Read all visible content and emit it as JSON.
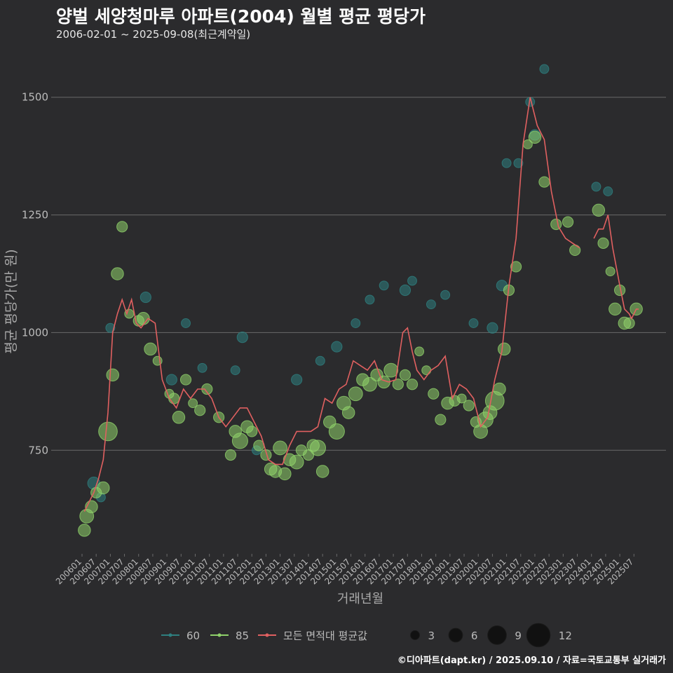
{
  "title": "양벌 세양청마루 아파트(2004) 월별 평균 평당가",
  "subtitle": "2006-02-01 ~ 2025-09-08(최근계약일)",
  "caption": "©디아파트(dapt.kr) / 2025.09.10 / 자료=국토교통부 실거래가",
  "colors": {
    "series60": "#2e7f7f",
    "series85": "#8fd16a",
    "avg": "#e06060",
    "grid": "#6a6a6a",
    "text": "#bbbbbb"
  },
  "chart_data": {
    "type": "line+scatter",
    "xlabel": "거래년월",
    "ylabel": "평균 평당가(만 원)",
    "ylim": [
      530,
      1580
    ],
    "yticks": [
      750,
      1000,
      1250,
      1500
    ],
    "x_start": "2006-01",
    "x_end": "2025-09",
    "xticks": [
      "200601",
      "200607",
      "200701",
      "200707",
      "200801",
      "200807",
      "200901",
      "200907",
      "201001",
      "201007",
      "201101",
      "201107",
      "201201",
      "201207",
      "201301",
      "201307",
      "201401",
      "201407",
      "201501",
      "201507",
      "201601",
      "201607",
      "201701",
      "201707",
      "201801",
      "201807",
      "201901",
      "201907",
      "202001",
      "202007",
      "202101",
      "202107",
      "202201",
      "202207",
      "202301",
      "202307",
      "202401",
      "202407",
      "202501",
      "202507"
    ],
    "legend": {
      "series": [
        "60",
        "85",
        "모든 면적대 평균값"
      ],
      "sizes": [
        3,
        6,
        9,
        12
      ]
    },
    "avg_line": [
      [
        "2006-02",
        620
      ],
      [
        "2006-04",
        640
      ],
      [
        "2006-06",
        660
      ],
      [
        "2006-08",
        690
      ],
      [
        "2006-10",
        730
      ],
      [
        "2006-12",
        830
      ],
      [
        "2007-02",
        1000
      ],
      [
        "2007-04",
        1040
      ],
      [
        "2007-06",
        1070
      ],
      [
        "2007-08",
        1040
      ],
      [
        "2007-10",
        1070
      ],
      [
        "2007-12",
        1020
      ],
      [
        "2008-02",
        1010
      ],
      [
        "2008-05",
        1030
      ],
      [
        "2008-08",
        1020
      ],
      [
        "2008-11",
        900
      ],
      [
        "2009-02",
        860
      ],
      [
        "2009-05",
        840
      ],
      [
        "2009-08",
        880
      ],
      [
        "2009-11",
        860
      ],
      [
        "2010-02",
        880
      ],
      [
        "2010-05",
        880
      ],
      [
        "2010-08",
        860
      ],
      [
        "2010-11",
        820
      ],
      [
        "2011-02",
        800
      ],
      [
        "2011-05",
        820
      ],
      [
        "2011-08",
        840
      ],
      [
        "2011-11",
        840
      ],
      [
        "2012-02",
        810
      ],
      [
        "2012-05",
        780
      ],
      [
        "2012-08",
        730
      ],
      [
        "2012-11",
        720
      ],
      [
        "2013-02",
        720
      ],
      [
        "2013-05",
        760
      ],
      [
        "2013-08",
        790
      ],
      [
        "2013-11",
        790
      ],
      [
        "2014-02",
        790
      ],
      [
        "2014-05",
        800
      ],
      [
        "2014-08",
        860
      ],
      [
        "2014-11",
        850
      ],
      [
        "2015-02",
        880
      ],
      [
        "2015-05",
        890
      ],
      [
        "2015-08",
        940
      ],
      [
        "2015-11",
        930
      ],
      [
        "2016-02",
        920
      ],
      [
        "2016-05",
        940
      ],
      [
        "2016-08",
        900
      ],
      [
        "2016-11",
        895
      ],
      [
        "2017-02",
        900
      ],
      [
        "2017-05",
        1000
      ],
      [
        "2017-07",
        1010
      ],
      [
        "2017-09",
        960
      ],
      [
        "2017-11",
        920
      ],
      [
        "2018-02",
        900
      ],
      [
        "2018-05",
        920
      ],
      [
        "2018-08",
        930
      ],
      [
        "2018-11",
        950
      ],
      [
        "2019-02",
        860
      ],
      [
        "2019-05",
        890
      ],
      [
        "2019-08",
        880
      ],
      [
        "2019-11",
        860
      ],
      [
        "2020-02",
        800
      ],
      [
        "2020-05",
        820
      ],
      [
        "2020-08",
        900
      ],
      [
        "2020-11",
        960
      ],
      [
        "2021-02",
        1100
      ],
      [
        "2021-05",
        1200
      ],
      [
        "2021-08",
        1400
      ],
      [
        "2021-11",
        1500
      ],
      [
        "2022-02",
        1440
      ],
      [
        "2022-05",
        1410
      ],
      [
        "2022-08",
        1300
      ],
      [
        "2022-11",
        1225
      ],
      [
        "2023-02",
        1200
      ],
      [
        "2023-05",
        1190
      ],
      [
        "2023-08",
        1180
      ],
      null,
      [
        "2024-02",
        1200
      ],
      [
        "2024-04",
        1220
      ],
      [
        "2024-06",
        1220
      ],
      [
        "2024-08",
        1250
      ],
      [
        "2024-10",
        1180
      ],
      [
        "2025-01",
        1100
      ],
      [
        "2025-03",
        1050
      ],
      [
        "2025-05",
        1040
      ],
      [
        "2025-06",
        1030
      ],
      [
        "2025-08",
        1050
      ],
      [
        "2025-09",
        1050
      ]
    ],
    "series": [
      {
        "name": "60",
        "points": [
          [
            "2006-06",
            680,
            5
          ],
          [
            "2006-09",
            650,
            3
          ],
          [
            "2007-01",
            1010,
            3
          ],
          [
            "2008-04",
            1075,
            4
          ],
          [
            "2009-03",
            900,
            4
          ],
          [
            "2009-09",
            1020,
            3
          ],
          [
            "2010-04",
            925,
            3
          ],
          [
            "2011-06",
            920,
            3
          ],
          [
            "2011-09",
            990,
            4
          ],
          [
            "2012-03",
            750,
            3
          ],
          [
            "2013-08",
            900,
            4
          ],
          [
            "2014-06",
            940,
            3
          ],
          [
            "2015-01",
            970,
            4
          ],
          [
            "2015-09",
            1020,
            3
          ],
          [
            "2016-03",
            1070,
            3
          ],
          [
            "2016-09",
            1100,
            3
          ],
          [
            "2017-06",
            1090,
            4
          ],
          [
            "2017-09",
            1110,
            3
          ],
          [
            "2018-05",
            1060,
            3
          ],
          [
            "2018-11",
            1080,
            3
          ],
          [
            "2019-11",
            1020,
            3
          ],
          [
            "2020-07",
            1010,
            4
          ],
          [
            "2020-11",
            1100,
            4
          ],
          [
            "2021-01",
            1360,
            3
          ],
          [
            "2021-06",
            1360,
            3
          ],
          [
            "2021-11",
            1490,
            3
          ],
          [
            "2022-01",
            1420,
            4
          ],
          [
            "2022-05",
            1560,
            3
          ],
          [
            "2024-03",
            1310,
            3
          ],
          [
            "2024-08",
            1300,
            3
          ]
        ]
      },
      {
        "name": "85",
        "points": [
          [
            "2006-02",
            580,
            5
          ],
          [
            "2006-03",
            610,
            6
          ],
          [
            "2006-05",
            630,
            5
          ],
          [
            "2006-07",
            660,
            4
          ],
          [
            "2006-10",
            670,
            5
          ],
          [
            "2006-12",
            790,
            9
          ],
          [
            "2007-02",
            910,
            5
          ],
          [
            "2007-04",
            1125,
            5
          ],
          [
            "2007-06",
            1225,
            4
          ],
          [
            "2007-09",
            1040,
            3
          ],
          [
            "2008-01",
            1025,
            4
          ],
          [
            "2008-03",
            1030,
            5
          ],
          [
            "2008-06",
            965,
            5
          ],
          [
            "2008-09",
            940,
            3
          ],
          [
            "2009-02",
            870,
            3
          ],
          [
            "2009-04",
            860,
            4
          ],
          [
            "2009-06",
            820,
            5
          ],
          [
            "2009-09",
            900,
            4
          ],
          [
            "2009-12",
            850,
            3
          ],
          [
            "2010-03",
            835,
            4
          ],
          [
            "2010-06",
            880,
            4
          ],
          [
            "2010-11",
            820,
            4
          ],
          [
            "2011-04",
            740,
            4
          ],
          [
            "2011-06",
            790,
            5
          ],
          [
            "2011-08",
            770,
            7
          ],
          [
            "2011-11",
            800,
            5
          ],
          [
            "2012-01",
            790,
            4
          ],
          [
            "2012-04",
            760,
            4
          ],
          [
            "2012-07",
            740,
            4
          ],
          [
            "2012-09",
            710,
            5
          ],
          [
            "2012-11",
            705,
            5
          ],
          [
            "2013-01",
            755,
            6
          ],
          [
            "2013-03",
            700,
            5
          ],
          [
            "2013-05",
            730,
            5
          ],
          [
            "2013-08",
            725,
            6
          ],
          [
            "2013-10",
            750,
            4
          ],
          [
            "2014-01",
            740,
            4
          ],
          [
            "2014-03",
            760,
            5
          ],
          [
            "2014-05",
            755,
            7
          ],
          [
            "2014-07",
            705,
            5
          ],
          [
            "2014-10",
            810,
            5
          ],
          [
            "2015-01",
            790,
            7
          ],
          [
            "2015-04",
            850,
            6
          ],
          [
            "2015-06",
            830,
            5
          ],
          [
            "2015-09",
            870,
            6
          ],
          [
            "2015-12",
            900,
            5
          ],
          [
            "2016-03",
            890,
            6
          ],
          [
            "2016-06",
            910,
            5
          ],
          [
            "2016-09",
            895,
            5
          ],
          [
            "2016-12",
            920,
            6
          ],
          [
            "2017-03",
            890,
            4
          ],
          [
            "2017-06",
            910,
            4
          ],
          [
            "2017-09",
            890,
            4
          ],
          [
            "2017-12",
            960,
            3
          ],
          [
            "2018-03",
            920,
            3
          ],
          [
            "2018-06",
            870,
            4
          ],
          [
            "2018-09",
            815,
            4
          ],
          [
            "2018-12",
            850,
            5
          ],
          [
            "2019-03",
            855,
            4
          ],
          [
            "2019-06",
            860,
            3
          ],
          [
            "2019-09",
            845,
            4
          ],
          [
            "2019-12",
            810,
            4
          ],
          [
            "2020-02",
            790,
            6
          ],
          [
            "2020-04",
            815,
            7
          ],
          [
            "2020-06",
            830,
            6
          ],
          [
            "2020-08",
            855,
            9
          ],
          [
            "2020-10",
            880,
            5
          ],
          [
            "2020-12",
            965,
            5
          ],
          [
            "2021-02",
            1090,
            4
          ],
          [
            "2021-05",
            1140,
            4
          ],
          [
            "2021-10",
            1400,
            3
          ],
          [
            "2022-01",
            1415,
            5
          ],
          [
            "2022-05",
            1320,
            4
          ],
          [
            "2022-10",
            1230,
            4
          ],
          [
            "2023-03",
            1235,
            4
          ],
          [
            "2023-06",
            1175,
            4
          ],
          [
            "2024-04",
            1260,
            5
          ],
          [
            "2024-06",
            1190,
            4
          ],
          [
            "2024-09",
            1130,
            3
          ],
          [
            "2024-11",
            1050,
            5
          ],
          [
            "2025-01",
            1090,
            4
          ],
          [
            "2025-03",
            1020,
            5
          ],
          [
            "2025-05",
            1020,
            4
          ],
          [
            "2025-08",
            1050,
            5
          ]
        ]
      }
    ]
  }
}
